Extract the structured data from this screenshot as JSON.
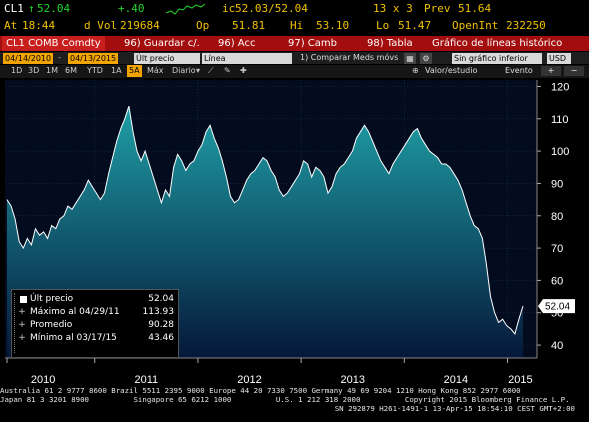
{
  "quote": {
    "ticker": "CL1",
    "arrow": "↑",
    "last": "52.04",
    "change": "+.40",
    "time_label": "At",
    "time": "18:44",
    "dvol_label": "d Vol",
    "dvol": "219684",
    "ic_label": "ic",
    "bid_ask": "52.03/52.04",
    "size": "13 x 3",
    "prev_label": "Prev",
    "prev": "51.64",
    "op_label": "Op",
    "open": "51.81",
    "hi_label": "Hi",
    "high": "53.10",
    "lo_label": "Lo",
    "low": "51.47",
    "oi_label": "OpenInt",
    "open_interest": "232250"
  },
  "command_bar": {
    "security": "CL1 COMB Comdty",
    "save": "96) Guardar c/.",
    "actions": "96) Acc",
    "change": "97) Camb",
    "table": "98) Tabla",
    "chart_title": "Gráfico de líneas histórico"
  },
  "toolbar": {
    "start_date": "04/14/2010",
    "end_date": "04/13/2015",
    "field": "Últ precio",
    "line_type": "Línea",
    "compare": "1) Comparar Meds móvs",
    "value_study": "Valor/estudio",
    "event": "Evento",
    "lower_chart": "Sin gráfico inferior",
    "currency": "USD",
    "ranges": [
      "1D",
      "3D",
      "1M",
      "6M",
      "YTD",
      "1A",
      "5A",
      "Máx"
    ],
    "active_range": "5A",
    "frequency": "Diario"
  },
  "legend": {
    "last_label": "Últ precio",
    "last_value": "52.04",
    "max_label": "Máximo al 04/29/11",
    "max_value": "113.93",
    "avg_label": "Promedio",
    "avg_value": "90.28",
    "min_label": "Mínimo al 03/17/15",
    "min_value": "43.46"
  },
  "chart_data": {
    "type": "area",
    "x_labels": [
      "2010",
      "2011",
      "2012",
      "2013",
      "2014",
      "2015"
    ],
    "y_ticks": [
      40,
      50,
      60,
      70,
      80,
      90,
      100,
      110,
      120
    ],
    "ylim": [
      36,
      122
    ],
    "last_value_tag": "52.04",
    "colors": {
      "fill_top": "#1f9fa6",
      "fill_bottom": "#05183a",
      "line": "#ffffff",
      "background": "#030c1e"
    },
    "series": [
      {
        "values": [
          85,
          83,
          79,
          72,
          70,
          73,
          71,
          76,
          74,
          75,
          73,
          77,
          76,
          79,
          80,
          83,
          82,
          84,
          86,
          88,
          91,
          89,
          87,
          85,
          87,
          93,
          98,
          103,
          107,
          110,
          113.93,
          106,
          100,
          97,
          100,
          96,
          92,
          88,
          84,
          88,
          86,
          95,
          99,
          97,
          94,
          96,
          97,
          100,
          102,
          106,
          108,
          104,
          101,
          97,
          92,
          86,
          84,
          85,
          88,
          91,
          93,
          94,
          96,
          98,
          97,
          94,
          92,
          88,
          86,
          87,
          89,
          91,
          93,
          97,
          96,
          92,
          95,
          94,
          92,
          87,
          89,
          93,
          95,
          96,
          98,
          100,
          104,
          106,
          108,
          106,
          103,
          100,
          97,
          95,
          93,
          96,
          98,
          100,
          102,
          104,
          106,
          107,
          104,
          102,
          100,
          99,
          98,
          96,
          96,
          95,
          93,
          91,
          88,
          84,
          80,
          77,
          76,
          73,
          65,
          55,
          50,
          47,
          48,
          46,
          45,
          43.46,
          48,
          52.04
        ]
      }
    ]
  },
  "footer": {
    "line1": "Australia 61 2 9777 8600 Brazil 5511 2395 9000 Europe 44 20 7330 7500 Germany 49 69 9204 1210 Hong Kong 852 2977 6000",
    "line2": "Japan 81 3 3201 8900          Singapore 65 6212 1000          U.S. 1 212 318 2000          Copyright 2015 Bloomberg Finance L.P.",
    "line3": "SN 292879 H261-1491-1 13-Apr-15 18:54:10 CEST GMT+2:00"
  }
}
